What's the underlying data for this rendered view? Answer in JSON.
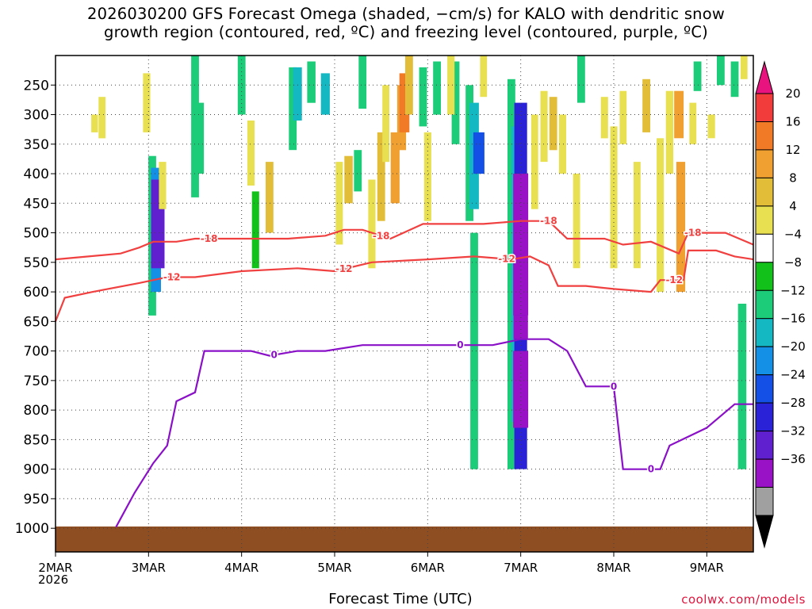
{
  "title": {
    "line1": "2026030200 GFS Forecast Omega (shaded, −cm/s) for KALO with dendritic snow",
    "line2": "growth region (contoured, red, ºC) and freezing level (contoured, purple, ºC)"
  },
  "watermark": "coolwx.com/models",
  "chart_data": {
    "type": "heatmap",
    "xlabel": "Forecast Time (UTC)",
    "ylabel": "",
    "x_axis": {
      "ticks": [
        "2MAR",
        "3MAR",
        "4MAR",
        "5MAR",
        "6MAR",
        "7MAR",
        "8MAR",
        "9MAR"
      ],
      "year_label": "2026",
      "range_days": [
        0,
        7.5
      ]
    },
    "y_axis": {
      "ticks": [
        250,
        300,
        350,
        400,
        450,
        500,
        550,
        600,
        650,
        700,
        750,
        800,
        850,
        900,
        950,
        1000
      ],
      "range_hPa": [
        200,
        1040
      ],
      "inverted": true
    },
    "grid": true,
    "colorbar": {
      "labels": [
        "20",
        "16",
        "12",
        "8",
        "4",
        "−4",
        "−8",
        "−12",
        "−16",
        "−20",
        "−24",
        "−28",
        "−32",
        "−36"
      ],
      "bins": [
        "#e8137e",
        "#f23c3c",
        "#f07a25",
        "#f0a030",
        "#e2bd38",
        "#e8e050",
        "#ffffff",
        "#12c21a",
        "#1ccc78",
        "#14b8c2",
        "#1490e6",
        "#1450e6",
        "#2a22d6",
        "#6020d0",
        "#9a12c6",
        "#a0a0a0",
        "#000000"
      ]
    },
    "omega_cells": [
      {
        "t": 1.04,
        "p0": 370,
        "p1": 640,
        "v": -8
      },
      {
        "t": 1.08,
        "p0": 390,
        "p1": 600,
        "v": -16
      },
      {
        "t": 1.1,
        "p0": 410,
        "p1": 560,
        "v": -28
      },
      {
        "t": 0.98,
        "p0": 230,
        "p1": 330,
        "v": 6
      },
      {
        "t": 0.5,
        "p0": 270,
        "p1": 340,
        "v": 5
      },
      {
        "t": 0.42,
        "p0": 300,
        "p1": 330,
        "v": 4
      },
      {
        "t": 1.15,
        "p0": 380,
        "p1": 460,
        "v": 6
      },
      {
        "t": 1.5,
        "p0": 200,
        "p1": 440,
        "v": -8
      },
      {
        "t": 1.55,
        "p0": 280,
        "p1": 400,
        "v": -10
      },
      {
        "t": 2.0,
        "p0": 200,
        "p1": 300,
        "v": -8
      },
      {
        "t": 2.1,
        "p0": 310,
        "p1": 420,
        "v": 6
      },
      {
        "t": 2.15,
        "p0": 430,
        "p1": 560,
        "v": -6
      },
      {
        "t": 2.3,
        "p0": 380,
        "p1": 500,
        "v": 8
      },
      {
        "t": 2.55,
        "p0": 220,
        "p1": 360,
        "v": -8
      },
      {
        "t": 2.6,
        "p0": 220,
        "p1": 310,
        "v": -12
      },
      {
        "t": 2.75,
        "p0": 210,
        "p1": 280,
        "v": -10
      },
      {
        "t": 2.9,
        "p0": 230,
        "p1": 300,
        "v": -12
      },
      {
        "t": 3.05,
        "p0": 380,
        "p1": 520,
        "v": 6
      },
      {
        "t": 3.15,
        "p0": 370,
        "p1": 450,
        "v": 10
      },
      {
        "t": 3.25,
        "p0": 360,
        "p1": 430,
        "v": -8
      },
      {
        "t": 3.3,
        "p0": 200,
        "p1": 290,
        "v": -8
      },
      {
        "t": 3.4,
        "p0": 410,
        "p1": 560,
        "v": 6
      },
      {
        "t": 3.5,
        "p0": 330,
        "p1": 480,
        "v": 8
      },
      {
        "t": 3.55,
        "p0": 250,
        "p1": 380,
        "v": 5
      },
      {
        "t": 3.65,
        "p0": 330,
        "p1": 450,
        "v": 12
      },
      {
        "t": 3.72,
        "p0": 250,
        "p1": 360,
        "v": 12
      },
      {
        "t": 3.75,
        "p0": 230,
        "p1": 330,
        "v": 16
      },
      {
        "t": 3.8,
        "p0": 200,
        "p1": 300,
        "v": 8
      },
      {
        "t": 3.95,
        "p0": 220,
        "p1": 320,
        "v": -8
      },
      {
        "t": 4.1,
        "p0": 210,
        "p1": 300,
        "v": -8
      },
      {
        "t": 4.3,
        "p0": 210,
        "p1": 350,
        "v": -8
      },
      {
        "t": 4.45,
        "p0": 250,
        "p1": 480,
        "v": -8
      },
      {
        "t": 4.5,
        "p0": 280,
        "p1": 460,
        "v": -14
      },
      {
        "t": 4.55,
        "p0": 330,
        "p1": 400,
        "v": -20
      },
      {
        "t": 4.5,
        "p0": 500,
        "p1": 900,
        "v": -8
      },
      {
        "t": 4.25,
        "p0": 200,
        "p1": 300,
        "v": 6
      },
      {
        "t": 4.0,
        "p0": 330,
        "p1": 480,
        "v": 6
      },
      {
        "t": 4.6,
        "p0": 200,
        "p1": 270,
        "v": 5
      },
      {
        "t": 4.9,
        "p0": 240,
        "p1": 900,
        "v": -8
      },
      {
        "t": 4.95,
        "p0": 320,
        "p1": 820,
        "v": -14
      },
      {
        "t": 5.0,
        "p0": 280,
        "p1": 900,
        "v": -26
      },
      {
        "t": 5.0,
        "p0": 400,
        "p1": 640,
        "v": -34
      },
      {
        "t": 5.0,
        "p0": 700,
        "p1": 830,
        "v": -34
      },
      {
        "t": 5.0,
        "p0": 640,
        "p1": 680,
        "v": -32
      },
      {
        "t": 5.15,
        "p0": 300,
        "p1": 460,
        "v": 5
      },
      {
        "t": 5.25,
        "p0": 260,
        "p1": 380,
        "v": 6
      },
      {
        "t": 5.35,
        "p0": 270,
        "p1": 360,
        "v": 8
      },
      {
        "t": 5.45,
        "p0": 300,
        "p1": 400,
        "v": 6
      },
      {
        "t": 5.65,
        "p0": 200,
        "p1": 280,
        "v": -8
      },
      {
        "t": 5.6,
        "p0": 400,
        "p1": 560,
        "v": 5
      },
      {
        "t": 5.9,
        "p0": 270,
        "p1": 340,
        "v": 6
      },
      {
        "t": 6.0,
        "p0": 320,
        "p1": 560,
        "v": 6
      },
      {
        "t": 6.1,
        "p0": 260,
        "p1": 350,
        "v": 5
      },
      {
        "t": 6.25,
        "p0": 380,
        "p1": 560,
        "v": 5
      },
      {
        "t": 6.35,
        "p0": 240,
        "p1": 330,
        "v": 8
      },
      {
        "t": 6.5,
        "p0": 340,
        "p1": 600,
        "v": 6
      },
      {
        "t": 6.6,
        "p0": 260,
        "p1": 400,
        "v": 7
      },
      {
        "t": 6.7,
        "p0": 260,
        "p1": 340,
        "v": 14
      },
      {
        "t": 6.72,
        "p0": 380,
        "p1": 600,
        "v": 12
      },
      {
        "t": 6.85,
        "p0": 280,
        "p1": 350,
        "v": 5
      },
      {
        "t": 6.9,
        "p0": 210,
        "p1": 260,
        "v": -8
      },
      {
        "t": 7.05,
        "p0": 300,
        "p1": 340,
        "v": 6
      },
      {
        "t": 7.15,
        "p0": 200,
        "p1": 250,
        "v": -8
      },
      {
        "t": 7.3,
        "p0": 210,
        "p1": 270,
        "v": -8
      },
      {
        "t": 7.38,
        "p0": 620,
        "p1": 900,
        "v": -10
      },
      {
        "t": 7.4,
        "p0": 200,
        "p1": 240,
        "v": 5
      }
    ],
    "series": [
      {
        "name": "-18",
        "color": "#f04040",
        "label_t": [
          1.65,
          3.5,
          5.3,
          6.85
        ],
        "points": [
          [
            0,
            545
          ],
          [
            0.7,
            535
          ],
          [
            0.9,
            525
          ],
          [
            1.05,
            515
          ],
          [
            1.3,
            515
          ],
          [
            1.5,
            510
          ],
          [
            2.0,
            510
          ],
          [
            2.5,
            510
          ],
          [
            2.9,
            505
          ],
          [
            3.1,
            495
          ],
          [
            3.3,
            495
          ],
          [
            3.6,
            510
          ],
          [
            3.95,
            485
          ],
          [
            4.2,
            485
          ],
          [
            4.6,
            485
          ],
          [
            5.0,
            480
          ],
          [
            5.3,
            480
          ],
          [
            5.5,
            510
          ],
          [
            5.9,
            510
          ],
          [
            6.1,
            520
          ],
          [
            6.4,
            515
          ],
          [
            6.7,
            535
          ],
          [
            6.8,
            500
          ],
          [
            7.2,
            500
          ],
          [
            7.5,
            520
          ]
        ]
      },
      {
        "name": "-12",
        "color": "#f04040",
        "label_t": [
          1.25,
          3.1,
          4.85,
          6.65
        ],
        "points": [
          [
            0,
            650
          ],
          [
            0.1,
            610
          ],
          [
            0.4,
            600
          ],
          [
            0.9,
            585
          ],
          [
            1.2,
            575
          ],
          [
            1.5,
            575
          ],
          [
            2.0,
            565
          ],
          [
            2.6,
            560
          ],
          [
            3.0,
            565
          ],
          [
            3.4,
            550
          ],
          [
            4.0,
            545
          ],
          [
            4.5,
            540
          ],
          [
            4.9,
            545
          ],
          [
            5.1,
            540
          ],
          [
            5.3,
            555
          ],
          [
            5.4,
            590
          ],
          [
            5.7,
            590
          ],
          [
            6.0,
            595
          ],
          [
            6.4,
            600
          ],
          [
            6.5,
            580
          ],
          [
            6.75,
            580
          ],
          [
            6.8,
            530
          ],
          [
            7.1,
            530
          ],
          [
            7.3,
            540
          ],
          [
            7.5,
            545
          ]
        ]
      },
      {
        "name": "0",
        "color": "#8a10c8",
        "label_t": [
          2.35,
          4.35,
          6.0,
          6.4
        ],
        "points": [
          [
            0.65,
            998
          ],
          [
            0.85,
            940
          ],
          [
            1.05,
            890
          ],
          [
            1.2,
            860
          ],
          [
            1.3,
            785
          ],
          [
            1.5,
            770
          ],
          [
            1.6,
            700
          ],
          [
            1.9,
            700
          ],
          [
            2.1,
            700
          ],
          [
            2.3,
            708
          ],
          [
            2.6,
            700
          ],
          [
            2.9,
            700
          ],
          [
            3.3,
            690
          ],
          [
            3.8,
            690
          ],
          [
            4.1,
            690
          ],
          [
            4.7,
            690
          ],
          [
            5.0,
            680
          ],
          [
            5.3,
            680
          ],
          [
            5.5,
            700
          ],
          [
            5.7,
            760
          ],
          [
            6.0,
            760
          ],
          [
            6.1,
            900
          ],
          [
            6.5,
            900
          ],
          [
            6.6,
            860
          ],
          [
            7.0,
            830
          ],
          [
            7.3,
            790
          ],
          [
            7.5,
            790
          ]
        ]
      }
    ]
  }
}
